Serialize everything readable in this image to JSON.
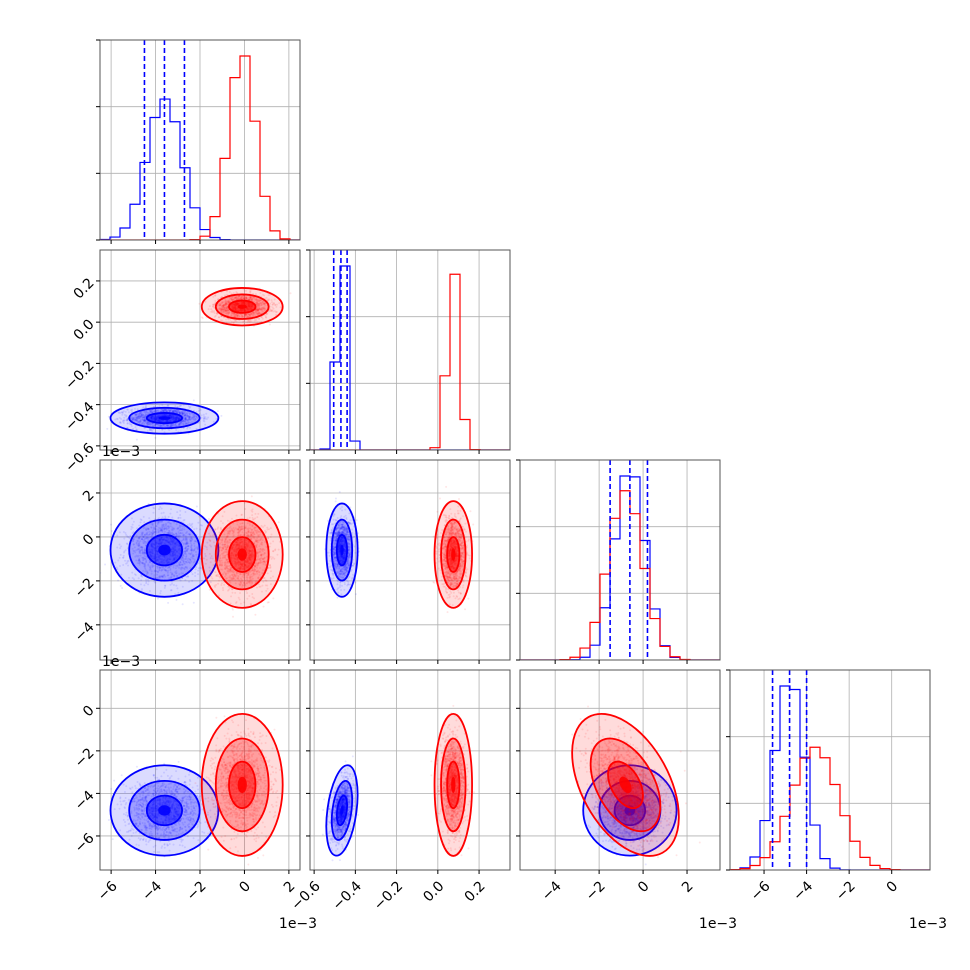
{
  "chart_data": {
    "type": "corner",
    "colors": {
      "series_a": "#0000ff",
      "series_b": "#ff0000",
      "frame": "#555555",
      "grid": "#b0b0b0"
    },
    "grid": true,
    "parameters": [
      {
        "index": 0,
        "range": [
          -0.0065,
          0.0025
        ],
        "ticks": [
          -0.006,
          -0.004,
          -0.002,
          0.0,
          0.002
        ],
        "tick_labels": [
          "−6",
          "−4",
          "−2",
          "0",
          "2"
        ],
        "offset_text": "1e−3"
      },
      {
        "index": 1,
        "range": [
          -0.62,
          0.35
        ],
        "ticks": [
          -0.6,
          -0.4,
          -0.2,
          0.0,
          0.2
        ],
        "tick_labels": [
          "−0.6",
          "−0.4",
          "−0.2",
          "0.0",
          "0.2"
        ],
        "offset_text": ""
      },
      {
        "index": 2,
        "range": [
          -0.0056,
          0.0035
        ],
        "ticks": [
          -0.004,
          -0.002,
          0.0,
          0.002
        ],
        "tick_labels": [
          "−4",
          "−2",
          "0",
          "2"
        ],
        "offset_text": "1e−3"
      },
      {
        "index": 3,
        "range": [
          -0.0076,
          0.0018
        ],
        "ticks": [
          -0.006,
          -0.004,
          -0.002,
          0.0
        ],
        "tick_labels": [
          "−6",
          "−4",
          "−2",
          "0"
        ],
        "offset_text": "1e−3"
      }
    ],
    "series": [
      {
        "color": "blue",
        "mean": [
          -0.0036,
          -0.465,
          -0.0006,
          -0.0048
        ],
        "std": [
          0.0008,
          0.025,
          0.0007,
          0.0007
        ],
        "quantiles": [
          [
            -0.0045,
            -0.0036,
            -0.0027
          ],
          [
            -0.505,
            -0.47,
            -0.44
          ],
          [
            -0.0015,
            -0.0006,
            0.0002
          ],
          [
            -0.0056,
            -0.0048,
            -0.004
          ]
        ],
        "correlations": [
          {
            "pair": [
              0,
              1
            ],
            "rho": 0.0
          },
          {
            "pair": [
              0,
              2
            ],
            "rho": 0.0
          },
          {
            "pair": [
              0,
              3
            ],
            "rho": 0.0
          },
          {
            "pair": [
              1,
              2
            ],
            "rho": 0.0
          },
          {
            "pair": [
              1,
              3
            ],
            "rho": 0.35
          },
          {
            "pair": [
              2,
              3
            ],
            "rho": 0.0
          }
        ]
      },
      {
        "color": "red",
        "mean": [
          -0.0001,
          0.075,
          -0.0008,
          -0.0036
        ],
        "std": [
          0.0006,
          0.03,
          0.0008,
          0.0011
        ],
        "quantiles": [
          [
            -0.0007,
            -0.0001,
            0.0005
          ],
          [
            0.045,
            0.075,
            0.105
          ],
          [
            -0.0016,
            -0.0008,
            0.0
          ],
          [
            -0.0047,
            -0.0036,
            -0.0025
          ]
        ],
        "correlations": [
          {
            "pair": [
              0,
              1
            ],
            "rho": 0.0
          },
          {
            "pair": [
              0,
              2
            ],
            "rho": 0.0
          },
          {
            "pair": [
              0,
              3
            ],
            "rho": 0.0
          },
          {
            "pair": [
              1,
              2
            ],
            "rho": 0.0
          },
          {
            "pair": [
              1,
              3
            ],
            "rho": 0.0
          },
          {
            "pair": [
              2,
              3
            ],
            "rho": -0.45
          }
        ]
      }
    ],
    "quantile_lines_series": "blue",
    "contour_levels": [
      0.39,
      0.86,
      0.99
    ]
  }
}
